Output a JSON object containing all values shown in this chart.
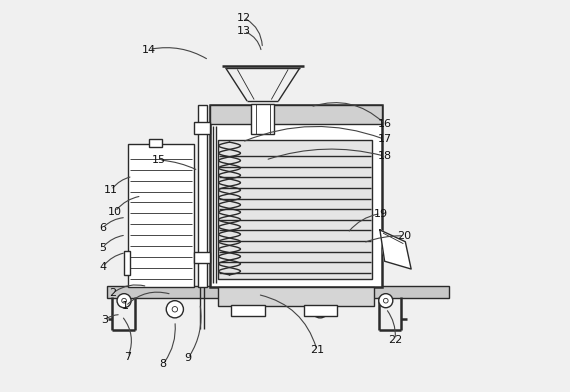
{
  "bg_color": "#f0f0f0",
  "line_color": "#2a2a2a",
  "label_color": "#111111",
  "lw": 1.0,
  "tlw": 0.6,
  "thk": 1.8,
  "fig_width": 5.7,
  "fig_height": 3.92,
  "dpi": 100,
  "annotations": {
    "1": [
      0.092,
      0.218,
      0.21,
      0.248,
      -0.3
    ],
    "2": [
      0.06,
      0.252,
      0.148,
      0.268,
      -0.25
    ],
    "3": [
      0.038,
      0.182,
      0.08,
      0.196,
      -0.2
    ],
    "4": [
      0.033,
      0.318,
      0.093,
      0.355,
      -0.2
    ],
    "5": [
      0.033,
      0.368,
      0.093,
      0.4,
      -0.2
    ],
    "6": [
      0.033,
      0.418,
      0.093,
      0.445,
      -0.2
    ],
    "7": [
      0.098,
      0.088,
      0.082,
      0.193,
      0.3
    ],
    "8": [
      0.188,
      0.07,
      0.218,
      0.18,
      0.2
    ],
    "9": [
      0.252,
      0.085,
      0.282,
      0.225,
      0.2
    ],
    "10": [
      0.065,
      0.46,
      0.133,
      0.5,
      -0.2
    ],
    "11": [
      0.055,
      0.515,
      0.11,
      0.55,
      -0.2
    ],
    "12": [
      0.395,
      0.956,
      0.442,
      0.878,
      -0.3
    ],
    "13": [
      0.395,
      0.922,
      0.44,
      0.868,
      -0.28
    ],
    "14": [
      0.152,
      0.875,
      0.305,
      0.848,
      -0.2
    ],
    "15": [
      0.178,
      0.592,
      0.278,
      0.565,
      -0.1
    ],
    "16": [
      0.755,
      0.685,
      0.565,
      0.728,
      0.3
    ],
    "17": [
      0.755,
      0.645,
      0.39,
      0.638,
      0.2
    ],
    "18": [
      0.755,
      0.602,
      0.45,
      0.592,
      0.15
    ],
    "19": [
      0.745,
      0.455,
      0.66,
      0.405,
      0.2
    ],
    "20": [
      0.805,
      0.398,
      0.7,
      0.38,
      0.1
    ],
    "21": [
      0.582,
      0.105,
      0.43,
      0.248,
      0.3
    ],
    "22": [
      0.782,
      0.132,
      0.758,
      0.212,
      0.2
    ]
  }
}
